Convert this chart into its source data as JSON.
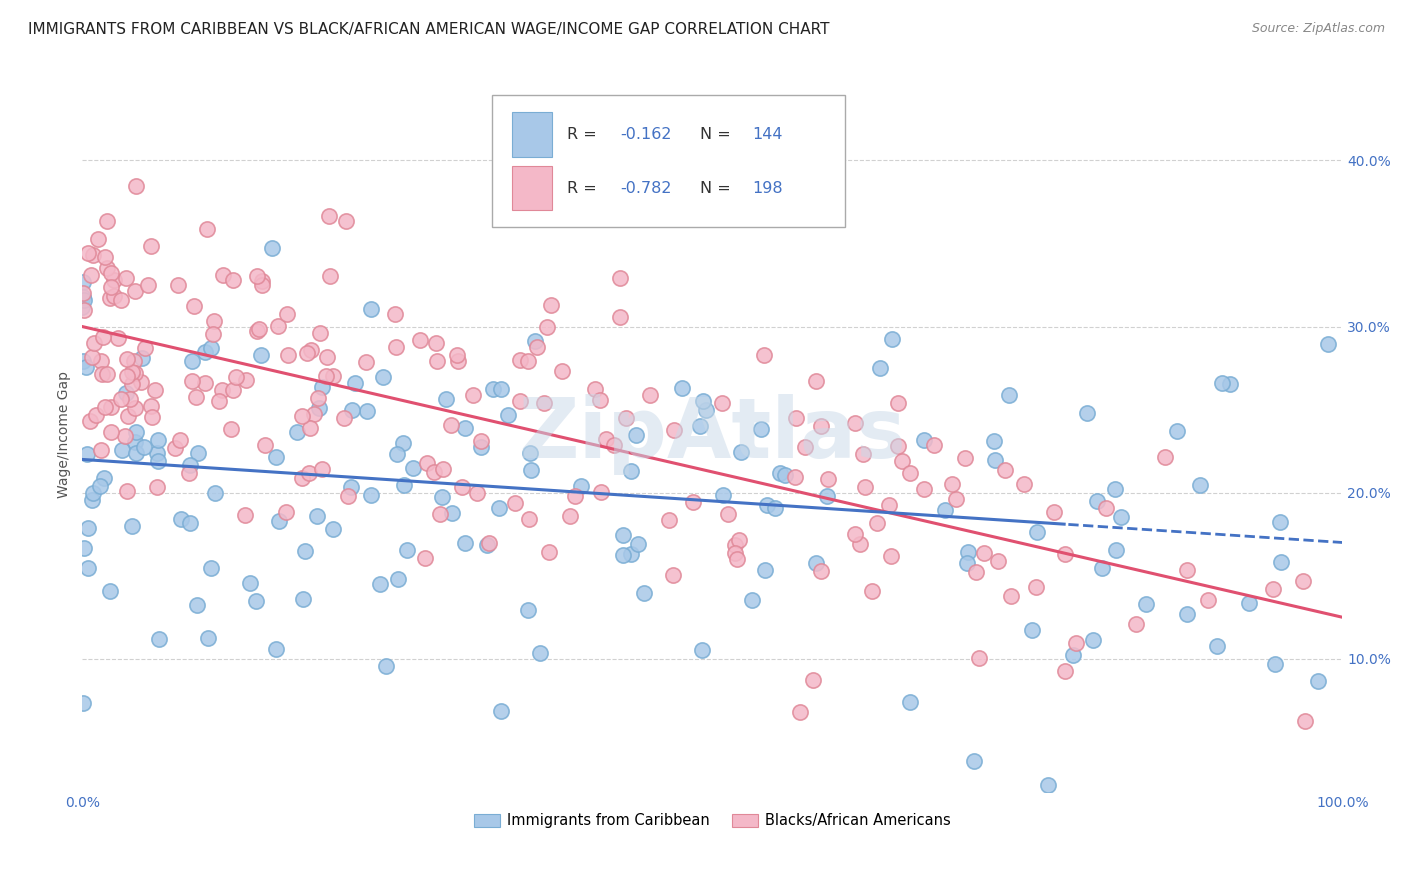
{
  "title": "IMMIGRANTS FROM CARIBBEAN VS BLACK/AFRICAN AMERICAN WAGE/INCOME GAP CORRELATION CHART",
  "source": "Source: ZipAtlas.com",
  "ylabel": "Wage/Income Gap",
  "xlim": [
    0,
    100
  ],
  "ylim": [
    2,
    45
  ],
  "yticks": [
    10,
    20,
    30,
    40
  ],
  "ytick_labels": [
    "10.0%",
    "20.0%",
    "30.0%",
    "40.0%"
  ],
  "xticks": [
    0,
    100
  ],
  "xtick_labels": [
    "0.0%",
    "100.0%"
  ],
  "blue_color": "#a8c8e8",
  "blue_edge_color": "#7aadd4",
  "pink_color": "#f4b8c8",
  "pink_edge_color": "#e08898",
  "blue_line_color": "#4472c4",
  "pink_line_color": "#e05070",
  "tick_label_color": "#4472c4",
  "watermark": "ZipAtlas",
  "watermark_color": "#c8d8e8",
  "legend_R_blue_val": "-0.162",
  "legend_N_blue_val": "144",
  "legend_R_pink_val": "-0.782",
  "legend_N_pink_val": "198",
  "legend_label_blue": "Immigrants from Caribbean",
  "legend_label_pink": "Blacks/African Americans",
  "blue_N": 144,
  "pink_N": 198,
  "blue_intercept": 22.0,
  "blue_slope": -0.05,
  "pink_intercept": 30.0,
  "pink_slope": -0.175,
  "background_color": "#ffffff",
  "grid_color": "#cccccc",
  "title_fontsize": 11,
  "axis_label_fontsize": 10,
  "tick_fontsize": 10,
  "source_fontsize": 9
}
